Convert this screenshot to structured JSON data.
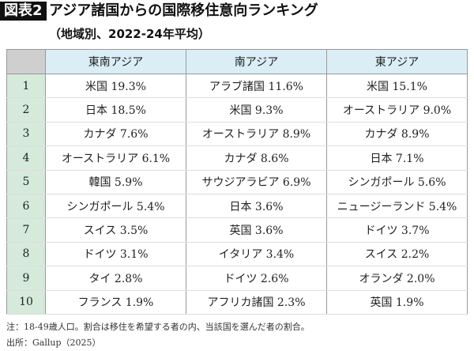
{
  "header": {
    "label": "図表2",
    "title": "アジア諸国からの国際移住意向ランキング",
    "subtitle": "（地域別、2022-24年平均）"
  },
  "table": {
    "columns": [
      "東南アジア",
      "南アジア",
      "東アジア"
    ],
    "rows": [
      [
        1,
        "米国 19.3%",
        "アラブ諸国 11.6%",
        "米国 15.1%"
      ],
      [
        2,
        "日本 18.5%",
        "米国 9.3%",
        "オーストラリア 9.0%"
      ],
      [
        3,
        "カナダ 7.6%",
        "オーストラリア 8.9%",
        "カナダ 8.9%"
      ],
      [
        4,
        "オーストラリア 6.1%",
        "カナダ 8.6%",
        "日本 7.1%"
      ],
      [
        5,
        "韓国 5.9%",
        "サウジアラビア 6.9%",
        "シンガポール 5.6%"
      ],
      [
        6,
        "シンガポール 5.4%",
        "日本 3.6%",
        "ニュージーランド 5.4%"
      ],
      [
        7,
        "スイス 3.5%",
        "英国 3.6%",
        "ドイツ 3.7%"
      ],
      [
        8,
        "ドイツ 3.1%",
        "イタリア 3.4%",
        "スイス 2.2%"
      ],
      [
        9,
        "タイ 2.8%",
        "ドイツ 2.6%",
        "オランダ 2.0%"
      ],
      [
        10,
        "フランス 1.9%",
        "アフリカ諸国 2.3%",
        "英国 1.9%"
      ]
    ]
  },
  "notes": [
    "注：18-49歳人口。割合は移住を希望する者の内、当該国を選んだ者の割合。",
    "出所：Gallup（2025）"
  ]
}
